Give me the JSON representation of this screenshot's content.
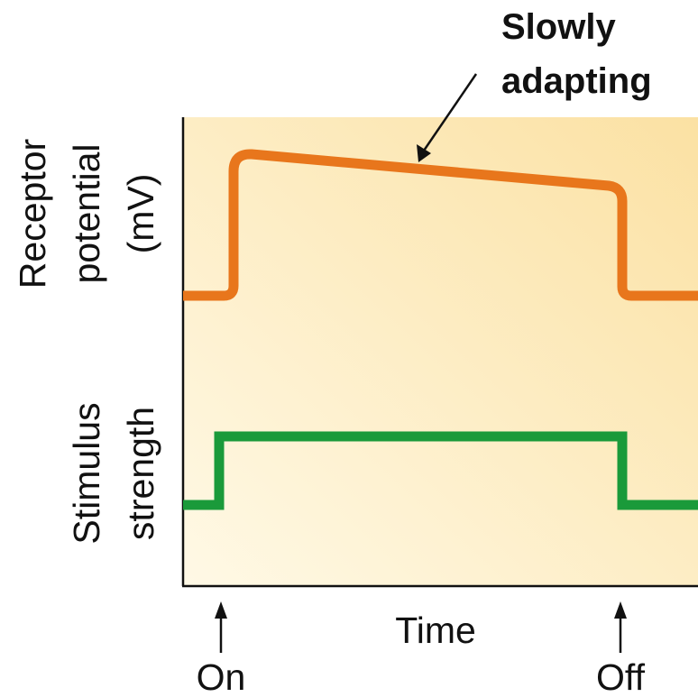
{
  "annotation": {
    "line1": "Slowly",
    "line2": "adapting"
  },
  "top_axis": {
    "line1": "Receptor",
    "line2": "potential",
    "line3": "(mV)"
  },
  "bottom_axis": {
    "line1": "Stimulus",
    "line2": "strength"
  },
  "x_axis": {
    "label": "Time",
    "on_label": "On",
    "off_label": "Off"
  },
  "colors": {
    "receptor_potential": "#e8761c",
    "stimulus_strength": "#1a9a3a",
    "background_light": "#fff9e6",
    "background_dark": "#fbe1a3",
    "axis": "#111111"
  },
  "traces": {
    "stimulus_strength": {
      "baseline": 0,
      "on_level": 1,
      "on_time": "On",
      "off_time": "Off"
    },
    "receptor_potential": {
      "baseline": 0,
      "peak": 1,
      "level_before_off": 0.77,
      "adaptation": "slowly adapting"
    }
  }
}
